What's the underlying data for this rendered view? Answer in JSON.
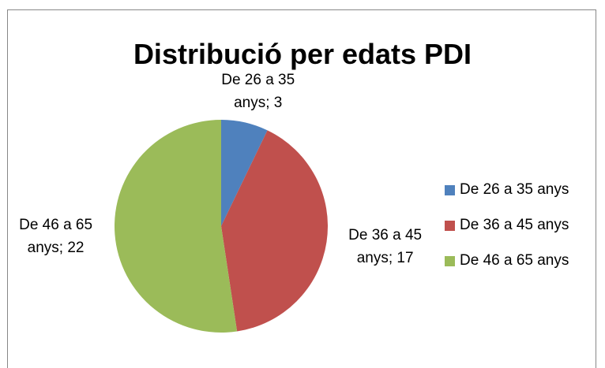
{
  "chart_data": {
    "type": "pie",
    "title": "Distribució per edats PDI",
    "categories": [
      "De 26 a 35 anys",
      "De 36 a 45 anys",
      "De 46 a 65 anys"
    ],
    "values": [
      3,
      17,
      22
    ],
    "value_labels": [
      "De 26 a 35 anys; 3",
      "De 36 a 45 anys; 17",
      "De 46 a 65 anys; 22"
    ],
    "colors": [
      "#4f81bd",
      "#c0504d",
      "#9bbb59"
    ],
    "legend": "right"
  }
}
